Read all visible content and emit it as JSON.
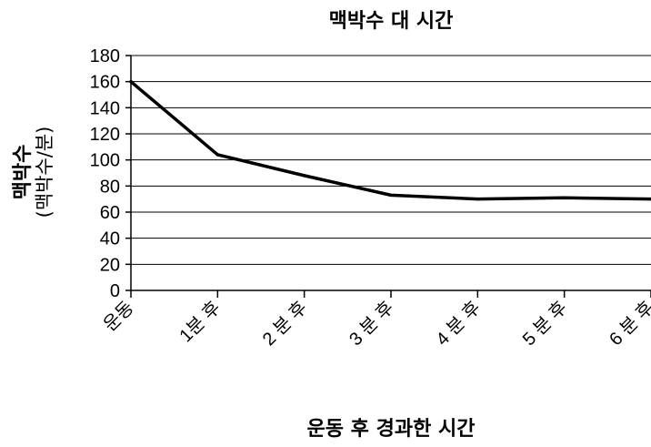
{
  "chart_data": {
    "type": "line",
    "title": "맥박수 대 시간",
    "xlabel": "운동 후 경과한 시간",
    "ylabel": "맥박수",
    "ylabel_unit": "(맥박수/분)",
    "categories": [
      "운동",
      "1분 후",
      "2 분 후",
      "3 분 후",
      "4 분 후",
      "5 분 후",
      "6 분 후"
    ],
    "yticks": [
      0,
      20,
      40,
      60,
      80,
      100,
      120,
      140,
      160,
      180
    ],
    "ylim": [
      0,
      180
    ],
    "grid": true,
    "series": [
      {
        "values": [
          160,
          104,
          88,
          73,
          70,
          71,
          70
        ]
      }
    ]
  }
}
